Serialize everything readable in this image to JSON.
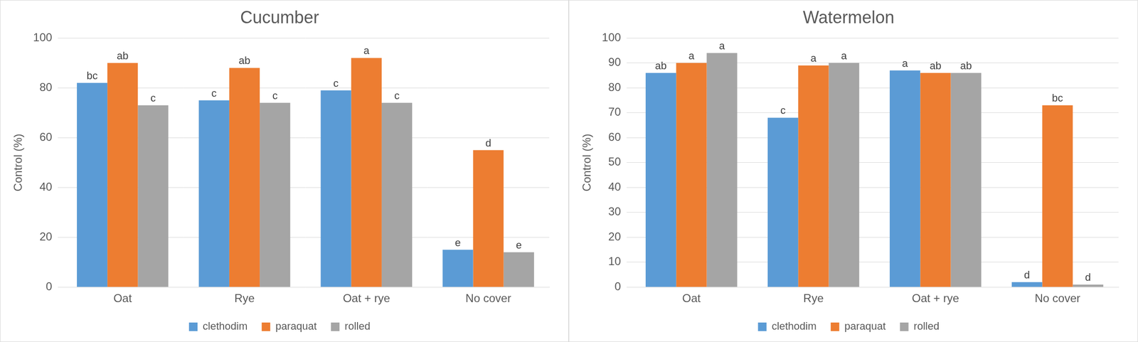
{
  "chart_data": [
    {
      "type": "bar",
      "title": "Cucumber",
      "y_label": "Control (%)",
      "categories": [
        "Oat",
        "Rye",
        "Oat + rye",
        "No cover"
      ],
      "series": [
        {
          "name": "clethodim",
          "color": "#5B9BD5",
          "values": [
            82,
            75,
            79,
            15
          ],
          "letters": [
            "bc",
            "c",
            "c",
            "e"
          ]
        },
        {
          "name": "paraquat",
          "color": "#ED7D31",
          "values": [
            90,
            88,
            92,
            55
          ],
          "letters": [
            "ab",
            "ab",
            "a",
            "d"
          ]
        },
        {
          "name": "rolled",
          "color": "#A5A5A5",
          "values": [
            73,
            74,
            74,
            14
          ],
          "letters": [
            "c",
            "c",
            "c",
            "e"
          ]
        }
      ],
      "ylim": [
        0,
        100
      ],
      "yticks": [
        0,
        20,
        40,
        60,
        80,
        100
      ],
      "grid": true,
      "legend": "bottom"
    },
    {
      "type": "bar",
      "title": "Watermelon",
      "y_label": "Control (%)",
      "categories": [
        "Oat",
        "Rye",
        "Oat + rye",
        "No cover"
      ],
      "series": [
        {
          "name": "clethodim",
          "color": "#5B9BD5",
          "values": [
            86,
            68,
            87,
            2
          ],
          "letters": [
            "ab",
            "c",
            "a",
            "d"
          ]
        },
        {
          "name": "paraquat",
          "color": "#ED7D31",
          "values": [
            90,
            89,
            86,
            73
          ],
          "letters": [
            "a",
            "a",
            "ab",
            "bc"
          ]
        },
        {
          "name": "rolled",
          "color": "#A5A5A5",
          "values": [
            94,
            90,
            86,
            1
          ],
          "letters": [
            "a",
            "a",
            "ab",
            "d"
          ]
        }
      ],
      "ylim": [
        0,
        100
      ],
      "yticks": [
        0,
        10,
        20,
        30,
        40,
        50,
        60,
        70,
        80,
        90,
        100
      ],
      "grid": true,
      "legend": "bottom"
    }
  ]
}
